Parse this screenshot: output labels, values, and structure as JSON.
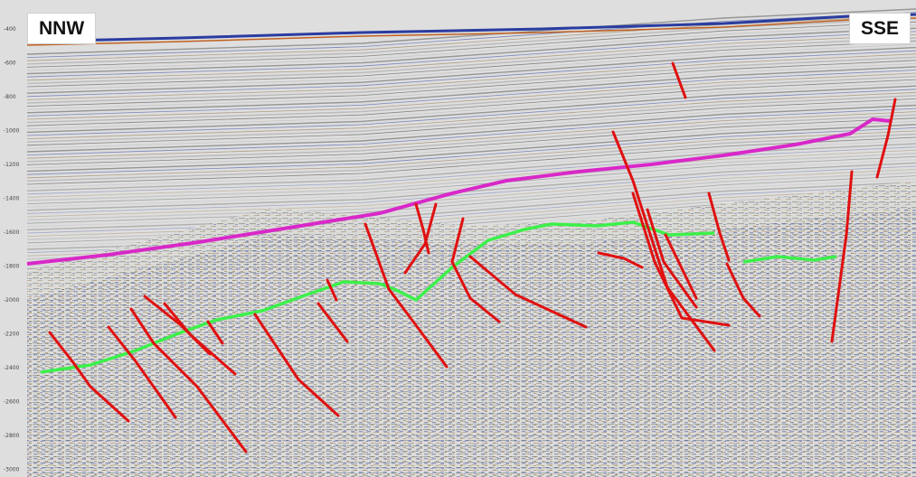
{
  "section": {
    "left_label": "NNW",
    "right_label": "SSE",
    "depth_ticks": [
      "-400",
      "-600",
      "-800",
      "-1000",
      "-1200",
      "-1400",
      "-1600",
      "-1800",
      "-2000",
      "-2200",
      "-2400",
      "-2600",
      "-2800",
      "-3000"
    ]
  },
  "colors": {
    "seafloor": "#2a3ca0",
    "top_horizon": "#d828c8",
    "basement_horizon": "#3cf04a",
    "faults": "#e01010",
    "background": "#d8d8d4"
  }
}
